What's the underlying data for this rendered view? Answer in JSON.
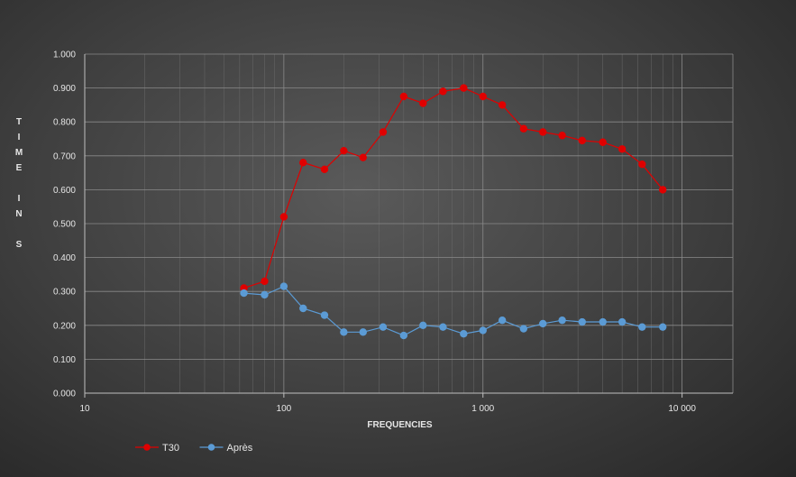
{
  "chart_data": {
    "type": "line",
    "xlabel": "FREQUENCIES",
    "ylabel": "TIME IN S",
    "xscale": "log",
    "xlim": [
      10,
      18000
    ],
    "ylim": [
      0,
      1
    ],
    "grid": true,
    "legend_position": "bottom-left",
    "x_ticks": [
      {
        "value": 10,
        "label": "10"
      },
      {
        "value": 100,
        "label": "100"
      },
      {
        "value": 1000,
        "label": "1 000"
      },
      {
        "value": 10000,
        "label": "10 000"
      }
    ],
    "y_ticks": [
      {
        "value": 0.0,
        "label": "0.000"
      },
      {
        "value": 0.1,
        "label": "0.100"
      },
      {
        "value": 0.2,
        "label": "0.200"
      },
      {
        "value": 0.3,
        "label": "0.300"
      },
      {
        "value": 0.4,
        "label": "0.400"
      },
      {
        "value": 0.5,
        "label": "0.500"
      },
      {
        "value": 0.6,
        "label": "0.600"
      },
      {
        "value": 0.7,
        "label": "0.700"
      },
      {
        "value": 0.8,
        "label": "0.800"
      },
      {
        "value": 0.9,
        "label": "0.900"
      },
      {
        "value": 1.0,
        "label": "1.000"
      }
    ],
    "x": [
      63,
      80,
      100,
      125,
      160,
      200,
      250,
      315,
      400,
      500,
      630,
      800,
      1000,
      1250,
      1600,
      2000,
      2500,
      3150,
      4000,
      5000,
      6300,
      8000
    ],
    "series": [
      {
        "name": "T30",
        "color": "#e00000",
        "values": [
          0.31,
          0.33,
          0.52,
          0.68,
          0.66,
          0.715,
          0.695,
          0.77,
          0.875,
          0.855,
          0.89,
          0.9,
          0.875,
          0.85,
          0.78,
          0.77,
          0.76,
          0.745,
          0.74,
          0.72,
          0.675,
          0.6
        ]
      },
      {
        "name": "Après",
        "color": "#5b9bd5",
        "values": [
          0.295,
          0.29,
          0.315,
          0.25,
          0.23,
          0.18,
          0.18,
          0.195,
          0.17,
          0.2,
          0.195,
          0.175,
          0.185,
          0.215,
          0.19,
          0.205,
          0.215,
          0.21,
          0.21,
          0.21,
          0.195,
          0.195
        ]
      }
    ]
  }
}
